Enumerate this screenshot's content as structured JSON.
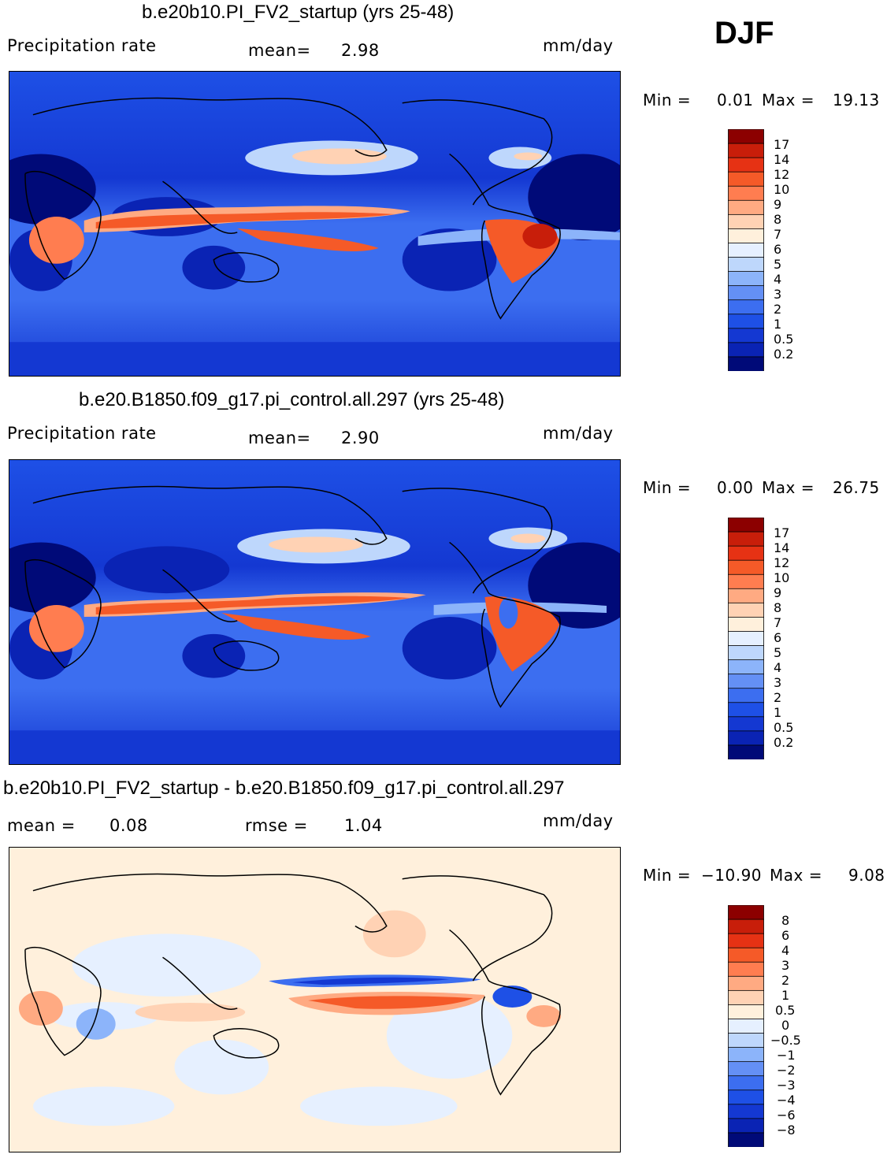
{
  "season": "DJF",
  "panels": [
    {
      "id": "model",
      "title": "b.e20b10.PI_FV2_startup (yrs 25-48)",
      "left_label": "Precipitation  rate",
      "stat1_label": "mean=",
      "stat1_value": "2.98",
      "units": "mm/day",
      "min_label": "Min  =",
      "min_value": "0.01",
      "max_label": "Max  =",
      "max_value": "19.13",
      "colorbar_labels": [
        "17",
        "14",
        "12",
        "10",
        "9",
        "8",
        "7",
        "6",
        "5",
        "4",
        "3",
        "2",
        "1",
        "0.5",
        "0.2"
      ]
    },
    {
      "id": "control",
      "title": "b.e20.B1850.f09_g17.pi_control.all.297 (yrs 25-48)",
      "left_label": "Precipitation  rate",
      "stat1_label": "mean=",
      "stat1_value": "2.90",
      "units": "mm/day",
      "min_label": "Min  =",
      "min_value": "0.00",
      "max_label": "Max  =",
      "max_value": "26.75",
      "colorbar_labels": [
        "17",
        "14",
        "12",
        "10",
        "9",
        "8",
        "7",
        "6",
        "5",
        "4",
        "3",
        "2",
        "1",
        "0.5",
        "0.2"
      ]
    },
    {
      "id": "difference",
      "title": "b.e20b10.PI_FV2_startup - b.e20.B1850.f09_g17.pi_control.all.297",
      "stat1_label": "mean  =",
      "stat1_value": "0.08",
      "stat2_label": "rmse  =",
      "stat2_value": "1.04",
      "units": "mm/day",
      "min_label": "Min  =",
      "min_value": "−10.90",
      "max_label": "Max  =",
      "max_value": "9.08",
      "colorbar_labels": [
        "8",
        "6",
        "4",
        "3",
        "2",
        "1",
        "0.5",
        "0",
        "−0.5",
        "−1",
        "−2",
        "−3",
        "−4",
        "−6",
        "−8"
      ]
    }
  ],
  "colors": {
    "precip_scale": [
      "#000a78",
      "#0a23b4",
      "#1438d2",
      "#1e50e6",
      "#3c6ef0",
      "#6490f5",
      "#8cb4fa",
      "#bed7fc",
      "#e6f0ff",
      "#fff0dc",
      "#ffd2b4",
      "#ffaa82",
      "#ff7d50",
      "#f55a28",
      "#e63214",
      "#c81e0a",
      "#8c0000"
    ],
    "diff_scale": [
      "#000a78",
      "#0a23b4",
      "#1438d2",
      "#1e50e6",
      "#3c6ef0",
      "#6490f5",
      "#8cb4fa",
      "#bed7fc",
      "#e6f0ff",
      "#fff0dc",
      "#ffd2b4",
      "#ffaa82",
      "#ff7d50",
      "#f55a28",
      "#e63214",
      "#c81e0a",
      "#8c0000"
    ]
  }
}
